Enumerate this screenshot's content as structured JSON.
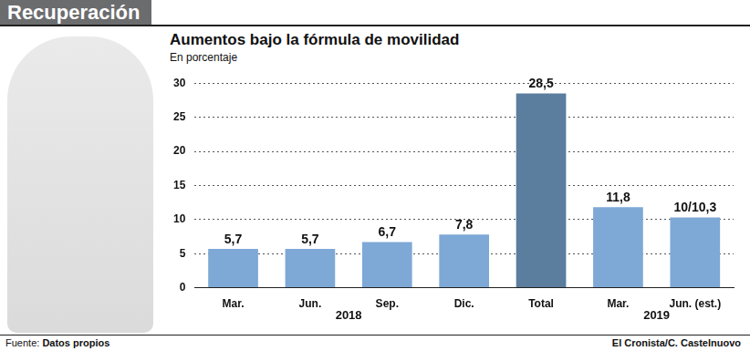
{
  "chart_data": {
    "type": "bar",
    "header": "Recuperación",
    "title": "Aumentos bajo la fórmula de movilidad",
    "subtitle": "En porcentaje",
    "categories": [
      "Mar.",
      "Jun.",
      "Sep.",
      "Dic.",
      "Total",
      "Mar.",
      "Jun. (est.)"
    ],
    "values": [
      5.7,
      5.7,
      6.7,
      7.8,
      28.5,
      11.8,
      10.3
    ],
    "value_labels": [
      "5,7",
      "5,7",
      "6,7",
      "7,8",
      "28,5",
      "11,8",
      "10/10,3"
    ],
    "colors": [
      "#7ea8d6",
      "#7ea8d6",
      "#7ea8d6",
      "#7ea8d6",
      "#5b7d9e",
      "#7ea8d6",
      "#7ea8d6"
    ],
    "category_groups": [
      {
        "label": "2018",
        "from": 0,
        "to": 3
      },
      {
        "label": "2019",
        "from": 5,
        "to": 6
      }
    ],
    "ylim": [
      0,
      30
    ],
    "yticks": [
      0,
      5,
      10,
      15,
      20,
      25,
      30
    ],
    "grid": true,
    "data_labels": true,
    "source_label": "Fuente:",
    "source": "Datos propios",
    "credit": "El Cronista/C. Castelnuovo"
  }
}
